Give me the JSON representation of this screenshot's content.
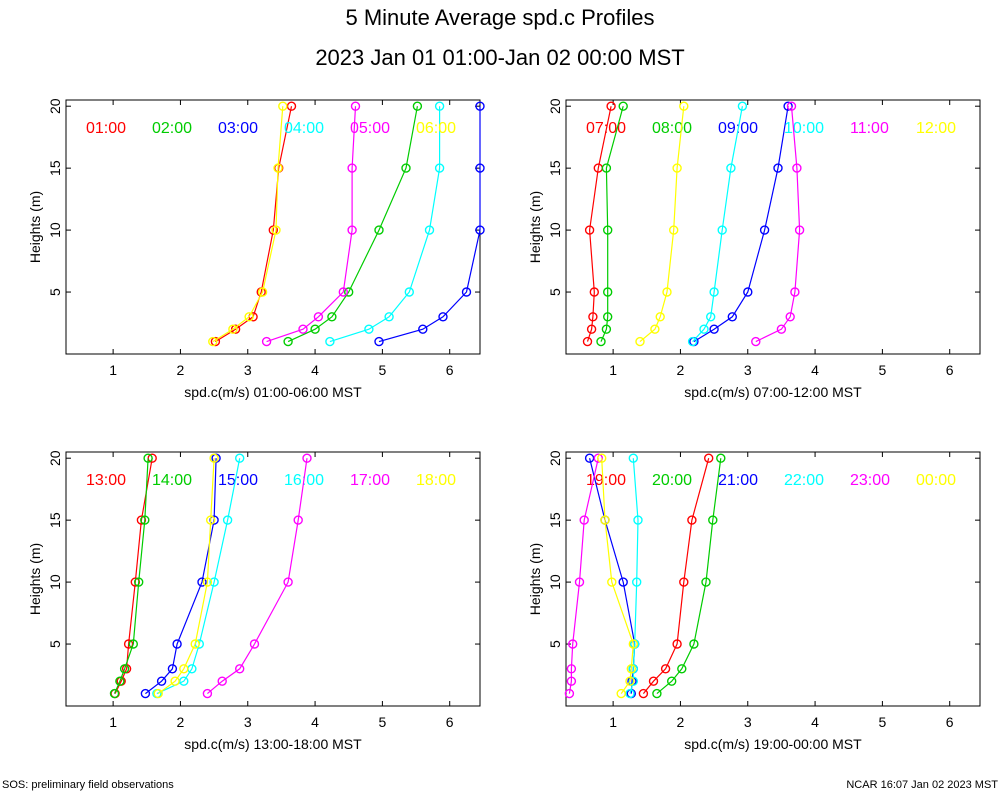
{
  "header": {
    "title": "5 Minute Average spd.c Profiles",
    "subtitle": "2023 Jan 01 01:00-Jan 02 00:00 MST"
  },
  "footer": {
    "left": "SOS: preliminary field observations",
    "right": "NCAR 16:07 Jan 02 2023 MST"
  },
  "colors": {
    "red": "#ff0000",
    "green": "#00cc00",
    "blue": "#0000ff",
    "cyan": "#00ffff",
    "magenta": "#ff00ff",
    "yellow": "#ffff00"
  },
  "chart_data": [
    {
      "type": "line",
      "ylabel": "Heights (m)",
      "xlabel": "spd.c(m/s) 01:00-06:00 MST",
      "xlim": [
        0.3,
        6.45
      ],
      "ylim": [
        0,
        20.5
      ],
      "xticks": [
        1,
        2,
        3,
        4,
        5,
        6
      ],
      "yticks": [
        5,
        10,
        15,
        20
      ],
      "heights": [
        1,
        2,
        3,
        5,
        10,
        15,
        20
      ],
      "series": [
        {
          "name": "01:00",
          "color": "red",
          "values": [
            2.52,
            2.82,
            3.08,
            3.2,
            3.38,
            3.46,
            3.65
          ]
        },
        {
          "name": "02:00",
          "color": "green",
          "values": [
            3.6,
            4.0,
            4.25,
            4.5,
            4.95,
            5.35,
            5.52
          ]
        },
        {
          "name": "03:00",
          "color": "blue",
          "values": [
            4.95,
            5.6,
            5.9,
            6.25,
            6.45,
            6.45,
            6.45
          ]
        },
        {
          "name": "04:00",
          "color": "cyan",
          "values": [
            4.22,
            4.8,
            5.1,
            5.4,
            5.7,
            5.85,
            5.85
          ]
        },
        {
          "name": "05:00",
          "color": "magenta",
          "values": [
            3.28,
            3.82,
            4.05,
            4.42,
            4.55,
            4.55,
            4.6
          ]
        },
        {
          "name": "06:00",
          "color": "yellow",
          "values": [
            2.48,
            2.78,
            3.02,
            3.22,
            3.42,
            3.45,
            3.52
          ]
        }
      ]
    },
    {
      "type": "line",
      "ylabel": "Heights (m)",
      "xlabel": "spd.c(m/s) 07:00-12:00 MST",
      "xlim": [
        0.3,
        6.45
      ],
      "ylim": [
        0,
        20.5
      ],
      "xticks": [
        1,
        2,
        3,
        4,
        5,
        6
      ],
      "yticks": [
        5,
        10,
        15,
        20
      ],
      "heights": [
        1,
        2,
        3,
        5,
        10,
        15,
        20
      ],
      "series": [
        {
          "name": "07:00",
          "color": "red",
          "values": [
            0.62,
            0.68,
            0.7,
            0.72,
            0.65,
            0.78,
            0.97
          ]
        },
        {
          "name": "08:00",
          "color": "green",
          "values": [
            0.82,
            0.9,
            0.92,
            0.92,
            0.92,
            0.9,
            1.15
          ]
        },
        {
          "name": "09:00",
          "color": "blue",
          "values": [
            2.2,
            2.5,
            2.77,
            3.0,
            3.25,
            3.45,
            3.6
          ]
        },
        {
          "name": "10:00",
          "color": "cyan",
          "values": [
            2.18,
            2.35,
            2.45,
            2.5,
            2.62,
            2.75,
            2.92
          ]
        },
        {
          "name": "11:00",
          "color": "magenta",
          "values": [
            3.12,
            3.5,
            3.63,
            3.7,
            3.77,
            3.73,
            3.65
          ]
        },
        {
          "name": "12:00",
          "color": "yellow",
          "values": [
            1.4,
            1.62,
            1.7,
            1.8,
            1.9,
            1.95,
            2.05
          ]
        }
      ]
    },
    {
      "type": "line",
      "ylabel": "Heights (m)",
      "xlabel": "spd.c(m/s) 13:00-18:00 MST",
      "xlim": [
        0.3,
        6.45
      ],
      "ylim": [
        0,
        20.5
      ],
      "xticks": [
        1,
        2,
        3,
        4,
        5,
        6
      ],
      "yticks": [
        5,
        10,
        15,
        20
      ],
      "heights": [
        1,
        2,
        3,
        5,
        10,
        15,
        20
      ],
      "series": [
        {
          "name": "13:00",
          "color": "red",
          "values": [
            1.03,
            1.12,
            1.2,
            1.23,
            1.33,
            1.42,
            1.58
          ]
        },
        {
          "name": "14:00",
          "color": "green",
          "values": [
            1.02,
            1.1,
            1.17,
            1.3,
            1.38,
            1.47,
            1.52
          ]
        },
        {
          "name": "15:00",
          "color": "blue",
          "values": [
            1.48,
            1.72,
            1.88,
            1.95,
            2.32,
            2.5,
            2.53
          ]
        },
        {
          "name": "16:00",
          "color": "cyan",
          "values": [
            1.65,
            2.05,
            2.17,
            2.28,
            2.5,
            2.7,
            2.88
          ]
        },
        {
          "name": "17:00",
          "color": "magenta",
          "values": [
            2.4,
            2.62,
            2.88,
            3.1,
            3.6,
            3.75,
            3.88
          ]
        },
        {
          "name": "18:00",
          "color": "yellow",
          "values": [
            1.67,
            1.92,
            2.05,
            2.22,
            2.4,
            2.45,
            2.5
          ]
        }
      ]
    },
    {
      "type": "line",
      "ylabel": "Heights (m)",
      "xlabel": "spd.c(m/s) 19:00-00:00 MST",
      "xlim": [
        0.3,
        6.45
      ],
      "ylim": [
        0,
        20.5
      ],
      "xticks": [
        1,
        2,
        3,
        4,
        5,
        6
      ],
      "yticks": [
        5,
        10,
        15,
        20
      ],
      "heights": [
        1,
        2,
        3,
        5,
        10,
        15,
        20
      ],
      "series": [
        {
          "name": "19:00",
          "color": "red",
          "values": [
            1.45,
            1.6,
            1.78,
            1.95,
            2.05,
            2.17,
            2.42
          ]
        },
        {
          "name": "20:00",
          "color": "green",
          "values": [
            1.65,
            1.87,
            2.02,
            2.2,
            2.38,
            2.48,
            2.6
          ]
        },
        {
          "name": "21:00",
          "color": "blue",
          "values": [
            1.27,
            1.28,
            1.3,
            1.32,
            1.15,
            0.88,
            0.65
          ]
        },
        {
          "name": "22:00",
          "color": "cyan",
          "values": [
            1.25,
            1.3,
            1.3,
            1.32,
            1.35,
            1.37,
            1.3
          ]
        },
        {
          "name": "23:00",
          "color": "magenta",
          "values": [
            0.35,
            0.38,
            0.38,
            0.4,
            0.5,
            0.57,
            0.78
          ]
        },
        {
          "name": "00:00",
          "color": "yellow",
          "values": [
            1.12,
            1.25,
            1.27,
            1.3,
            0.98,
            0.88,
            0.83
          ]
        }
      ]
    }
  ]
}
